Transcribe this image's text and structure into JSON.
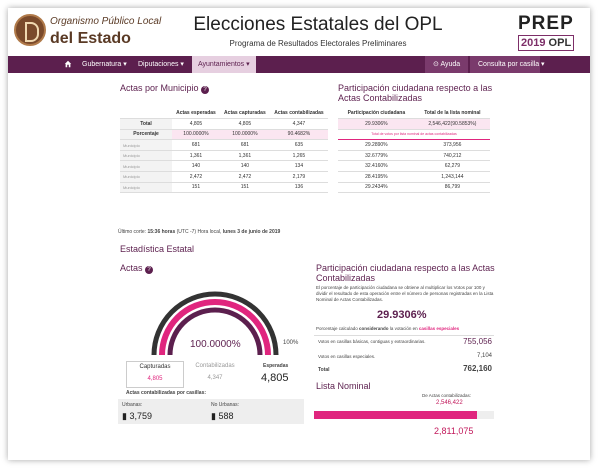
{
  "header": {
    "logo_line1": "Organismo Público Local",
    "logo_line2": "del Estado",
    "title": "Elecciones Estatales del OPL",
    "subtitle": "Programa de Resultados Electorales Preliminares",
    "prep_top": "PREP",
    "prep_year": "2019",
    "prep_org": "OPL"
  },
  "nav": {
    "home_icon": "home-icon",
    "items": [
      "Gubernatura",
      "Diputaciones",
      "Ayuntamientos"
    ],
    "active": "Ayuntamientos",
    "ayuda": "Ayuda",
    "consulta": "Consulta por casilla"
  },
  "actas_municipio": {
    "title": "Actas por Municipio",
    "headers": [
      "Actas esperadas",
      "Actas capturadas",
      "Actas contabilizadas"
    ],
    "total_row": {
      "label": "Total",
      "values": [
        "4,805",
        "4,805",
        "4,347"
      ]
    },
    "pct_row": {
      "label": "Porcentaje",
      "values": [
        "100.0000%",
        "100.0000%",
        "90.4682%"
      ]
    },
    "rows": [
      {
        "label": "Municipio",
        "values": [
          "681",
          "681",
          "635"
        ]
      },
      {
        "label": "Municipio",
        "values": [
          "1,361",
          "1,361",
          "1,265"
        ]
      },
      {
        "label": "Municipio",
        "values": [
          "140",
          "140",
          "134"
        ]
      },
      {
        "label": "Municipio",
        "values": [
          "2,472",
          "2,472",
          "2,179"
        ]
      },
      {
        "label": "Municipio",
        "values": [
          "151",
          "151",
          "136"
        ]
      }
    ]
  },
  "participacion_tabla": {
    "title": "Participación ciudadana respecto a las Actas Contabilizadas",
    "headers": [
      "Participación ciudadana",
      "Total de la lista nominal"
    ],
    "first": {
      "pct": "29.9306%",
      "total": "2,546,422(90.5853%)"
    },
    "note": "Total de votos por lista nominal de actas contabilizadas",
    "rows": [
      {
        "pct": "29.2890%",
        "total": "373,956"
      },
      {
        "pct": "32.6779%",
        "total": "740,212"
      },
      {
        "pct": "32.4160%",
        "total": "62,279"
      },
      {
        "pct": "28.4195%",
        "total": "1,243,144"
      },
      {
        "pct": "29.2434%",
        "total": "86,799"
      }
    ]
  },
  "corte": {
    "prefix": "Último corte:",
    "time": "15:36 horas",
    "zone": "(UTC -7) Hora local,",
    "date": "lunes 3 de junio de 2019"
  },
  "estadistica": {
    "title": "Estadística Estatal",
    "actas_title": "Actas",
    "gauge_pct": "100.0000%",
    "gauge_end": "100%",
    "gauge_value": 1.0,
    "capturadas_label": "Capturadas",
    "capturadas_value": "4,805",
    "contabilizadas_label": "Contabilizadas",
    "contabilizadas_value": "4,347",
    "esperadas_label": "Esperadas",
    "esperadas_value": "4,805",
    "casillas_label": "Actas contabilizadas por casillas:",
    "urbanas_label": "Urbanas:",
    "urbanas_value": "3,759",
    "no_urbanas_label": "No Urbanas:",
    "no_urbanas_value": "588"
  },
  "participacion": {
    "title": "Participación ciudadana respecto a las Actas Contabilizadas",
    "desc": "El porcentaje de participación ciudadana se obtiene al multiplicar los Votos por 100 y dividir el resultado de esta operación entre el número de personas registradas en la Lista Nominal de Actas Contabilizadas.",
    "pct": "29.9306%",
    "calc_prefix": "Porcentaje calculado",
    "calc_bold": "considerando",
    "calc_mid": "la votación en",
    "calc_link": "casillas especiales",
    "rows": [
      {
        "label": "Votos en casillas básicas, contiguas y extraordinarias.",
        "value": "755,056"
      },
      {
        "label": "Votos en casillas especiales.",
        "value": "7,104"
      },
      {
        "label": "Total",
        "value": "762,160"
      }
    ]
  },
  "lista_nominal": {
    "title": "Lista Nominal",
    "label": "De Actas contabilizadas:",
    "value": "2,546,422",
    "total": "2,811,075",
    "fill": 0.9058
  },
  "colors": {
    "primary": "#5c1f4e",
    "accent": "#e0257e",
    "pink": "#c2185b"
  }
}
